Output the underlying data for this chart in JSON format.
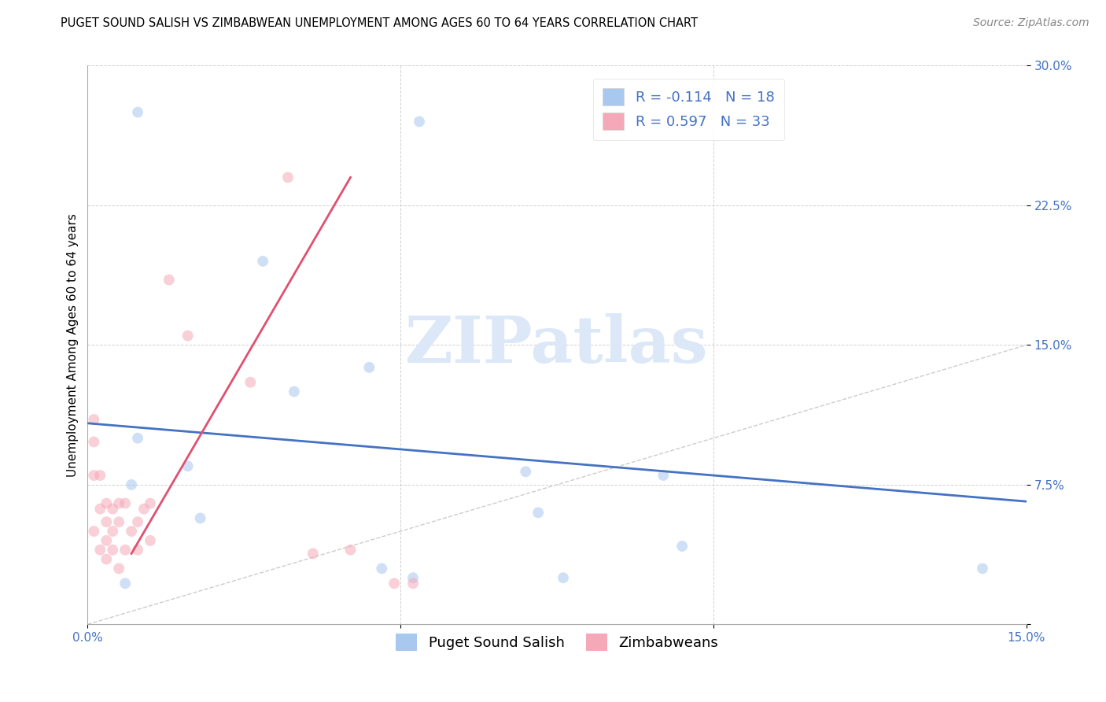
{
  "title": "PUGET SOUND SALISH VS ZIMBABWEAN UNEMPLOYMENT AMONG AGES 60 TO 64 YEARS CORRELATION CHART",
  "source": "Source: ZipAtlas.com",
  "ylabel": "Unemployment Among Ages 60 to 64 years",
  "xlim": [
    0.0,
    0.15
  ],
  "ylim": [
    0.0,
    0.3
  ],
  "xticks": [
    0.0,
    0.05,
    0.1,
    0.15
  ],
  "xtick_labels": [
    "0.0%",
    "",
    "",
    "15.0%"
  ],
  "yticks": [
    0.0,
    0.075,
    0.15,
    0.225,
    0.3
  ],
  "ytick_labels": [
    "",
    "7.5%",
    "15.0%",
    "22.5%",
    "30.0%"
  ],
  "blue_color": "#a8c8f0",
  "pink_color": "#f5a8b8",
  "blue_line_color": "#4472c4",
  "pink_line_color": "#e05070",
  "diagonal_color": "#cccccc",
  "watermark": "ZIPatlas",
  "legend_R_blue": "-0.114",
  "legend_N_blue": "18",
  "legend_R_pink": "0.597",
  "legend_N_pink": "33",
  "blue_points_x": [
    0.008,
    0.016,
    0.007,
    0.006,
    0.018,
    0.028,
    0.033,
    0.07,
    0.045,
    0.072,
    0.095,
    0.143,
    0.092,
    0.076,
    0.052,
    0.053,
    0.047,
    0.008
  ],
  "blue_points_y": [
    0.275,
    0.085,
    0.075,
    0.022,
    0.057,
    0.195,
    0.125,
    0.082,
    0.138,
    0.06,
    0.042,
    0.03,
    0.08,
    0.025,
    0.025,
    0.27,
    0.03,
    0.1
  ],
  "pink_points_x": [
    0.001,
    0.001,
    0.001,
    0.001,
    0.002,
    0.002,
    0.002,
    0.003,
    0.003,
    0.003,
    0.003,
    0.004,
    0.004,
    0.004,
    0.005,
    0.005,
    0.005,
    0.006,
    0.006,
    0.007,
    0.008,
    0.008,
    0.009,
    0.01,
    0.01,
    0.013,
    0.016,
    0.026,
    0.032,
    0.036,
    0.042,
    0.049,
    0.052
  ],
  "pink_points_y": [
    0.098,
    0.11,
    0.08,
    0.05,
    0.08,
    0.062,
    0.04,
    0.065,
    0.055,
    0.045,
    0.035,
    0.062,
    0.05,
    0.04,
    0.065,
    0.055,
    0.03,
    0.065,
    0.04,
    0.05,
    0.055,
    0.04,
    0.062,
    0.065,
    0.045,
    0.185,
    0.155,
    0.13,
    0.24,
    0.038,
    0.04,
    0.022,
    0.022
  ],
  "blue_line_x": [
    0.0,
    0.15
  ],
  "blue_line_y": [
    0.108,
    0.066
  ],
  "pink_line_x": [
    0.007,
    0.042
  ],
  "pink_line_y": [
    0.038,
    0.24
  ],
  "title_fontsize": 10.5,
  "label_fontsize": 11,
  "tick_fontsize": 11,
  "source_fontsize": 10,
  "legend_fontsize": 13,
  "watermark_fontsize": 60,
  "watermark_color": "#dce8f8",
  "point_size": 100,
  "point_alpha": 0.55
}
